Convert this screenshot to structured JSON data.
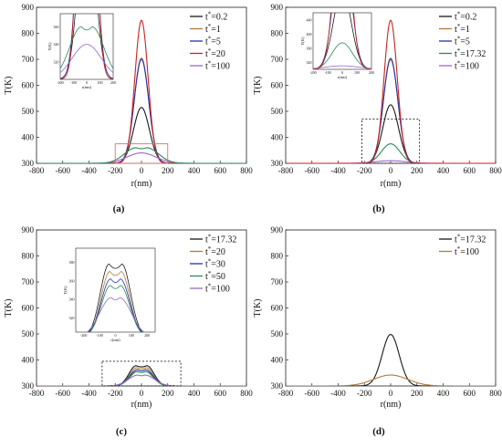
{
  "chart_data": [
    {
      "panel": "(a)",
      "type": "line",
      "xlabel": "r(nm)",
      "ylabel": "T(K)",
      "xlim": [
        -800,
        800
      ],
      "ylim": [
        300,
        900
      ],
      "xticks": [
        -800,
        -600,
        -400,
        -200,
        0,
        200,
        400,
        600,
        800
      ],
      "yticks": [
        300,
        400,
        500,
        600,
        700,
        800,
        900
      ],
      "legend": "top-right",
      "series": [
        {
          "name": "t*=0.2",
          "color": "#1a1a1a",
          "peak": 515,
          "width": 60,
          "flat": 0
        },
        {
          "name": "t*=1",
          "color": "#b07a3e",
          "peak": 705,
          "width": 55,
          "flat": 0
        },
        {
          "name": "t*=5",
          "color": "#2233aa",
          "peak": 700,
          "width": 55,
          "flat": 0
        },
        {
          "name": "t*=20",
          "color": "#cc2222",
          "peak": 850,
          "width": 50,
          "flat": 0
        },
        {
          "name": "t*=100",
          "color": "#9966cc",
          "peak": 340,
          "width": 110,
          "flat": 0
        },
        {
          "name": "",
          "color": "#2a8a55",
          "peak": 360,
          "width": 90,
          "flat": 40
        }
      ],
      "zoom_box": {
        "x": [
          -200,
          200
        ],
        "y": [
          300,
          375
        ],
        "style": "solid-red"
      },
      "inset": {
        "xlim": [
          -200,
          200
        ],
        "ylim": [
          300,
          375
        ],
        "xticks": [
          -200,
          -100,
          0,
          100,
          200
        ],
        "yticks": [
          320,
          340,
          360
        ],
        "xlabel": "r(nm)",
        "ylabel": "T(K)"
      }
    },
    {
      "panel": "(b)",
      "type": "line",
      "xlabel": "r(nm)",
      "ylabel": "T(K)",
      "xlim": [
        -800,
        800
      ],
      "ylim": [
        300,
        900
      ],
      "xticks": [
        -800,
        -600,
        -400,
        -200,
        0,
        200,
        400,
        600,
        800
      ],
      "yticks": [
        300,
        400,
        500,
        600,
        700,
        800,
        900
      ],
      "legend": "top-right",
      "series": [
        {
          "name": "t*=0.2",
          "color": "#1a1a1a",
          "peak": 525,
          "width": 60,
          "flat": 0
        },
        {
          "name": "t*=1",
          "color": "#b07a3e",
          "peak": 705,
          "width": 55,
          "flat": 0
        },
        {
          "name": "t*=5",
          "color": "#2233aa",
          "peak": 700,
          "width": 55,
          "flat": 0
        },
        {
          "name": "t*=17.32",
          "color": "#2a8a55",
          "peak": 375,
          "width": 70,
          "flat": 0
        },
        {
          "name": "t*=100",
          "color": "#9966cc",
          "peak": 310,
          "width": 120,
          "flat": 0
        },
        {
          "name": "",
          "color": "#cc2222",
          "peak": 850,
          "width": 50,
          "flat": 0
        }
      ],
      "zoom_box": {
        "x": [
          -220,
          220
        ],
        "y": [
          300,
          470
        ],
        "style": "dashed-black"
      },
      "inset": {
        "xlim": [
          -200,
          200
        ],
        "ylim": [
          300,
          460
        ],
        "xticks": [
          -200,
          -100,
          0,
          100,
          200
        ],
        "yticks": [
          320,
          360,
          400,
          440
        ],
        "xlabel": "r(nm)",
        "ylabel": "T(K)"
      }
    },
    {
      "panel": "(c)",
      "type": "line",
      "xlabel": "r(nm)",
      "ylabel": "T(K)",
      "xlim": [
        -800,
        800
      ],
      "ylim": [
        300,
        900
      ],
      "xticks": [
        -800,
        -600,
        -400,
        -200,
        0,
        200,
        400,
        600,
        800
      ],
      "yticks": [
        300,
        400,
        500,
        600,
        700,
        800,
        900
      ],
      "legend": "top-right",
      "series": [
        {
          "name": "t*=17.32",
          "color": "#1a1a1a",
          "peak": 378,
          "width": 55,
          "flat": 40
        },
        {
          "name": "t*=20",
          "color": "#b07a3e",
          "peak": 370,
          "width": 55,
          "flat": 35
        },
        {
          "name": "t*=30",
          "color": "#2233aa",
          "peak": 362,
          "width": 60,
          "flat": 30
        },
        {
          "name": "t*=50",
          "color": "#2a8a55",
          "peak": 355,
          "width": 60,
          "flat": 30
        },
        {
          "name": "t*=100",
          "color": "#9966cc",
          "peak": 342,
          "width": 75,
          "flat": 25
        }
      ],
      "zoom_box": {
        "x": [
          -300,
          300
        ],
        "y": [
          300,
          395
        ],
        "style": "dashed-black"
      },
      "inset": {
        "xlim": [
          -250,
          250
        ],
        "ylim": [
          305,
          395
        ],
        "xticks": [
          -200,
          -100,
          0,
          100,
          200
        ],
        "yticks": [
          320,
          340,
          360,
          380
        ],
        "xlabel": "r(nm)",
        "ylabel": "T(K)"
      }
    },
    {
      "panel": "(d)",
      "type": "line",
      "xlabel": "r(nm)",
      "ylabel": "T(K)",
      "xlim": [
        -800,
        800
      ],
      "ylim": [
        300,
        900
      ],
      "xticks": [
        -800,
        -600,
        -400,
        -200,
        0,
        200,
        400,
        600,
        800
      ],
      "yticks": [
        300,
        400,
        500,
        600,
        700,
        800,
        900
      ],
      "legend": "top-right",
      "series": [
        {
          "name": "t*=17.32",
          "color": "#1a1a1a",
          "peak": 498,
          "width": 65,
          "flat": 0
        },
        {
          "name": "t*=100",
          "color": "#b07a3e",
          "peak": 342,
          "width": 130,
          "flat": 0
        }
      ]
    }
  ]
}
